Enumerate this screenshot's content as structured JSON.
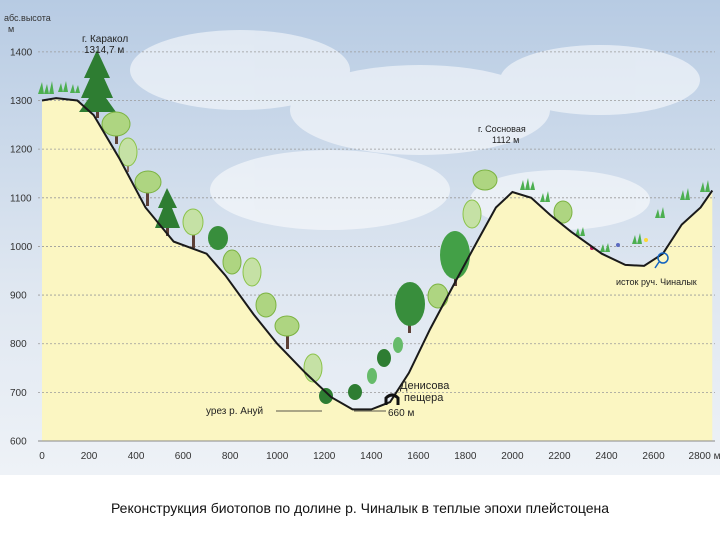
{
  "y_axis": {
    "label_line1": "абс.высота",
    "label_line2": "м",
    "ticks": [
      "1400",
      "1300",
      "1200",
      "1100",
      "1000",
      "900",
      "800",
      "700",
      "600"
    ]
  },
  "x_axis": {
    "ticks": [
      "0",
      "200",
      "400",
      "600",
      "800",
      "1000",
      "1200",
      "1400",
      "1600",
      "1800",
      "2000",
      "2200",
      "2400",
      "2600",
      "2800 м"
    ]
  },
  "annotations": {
    "karakol_name": "г. Каракол",
    "karakol_height": "1314,7 м",
    "sosnovaya_name": "г. Сосновая",
    "sosnovaya_height": "1112 м",
    "anui_level": "урез р. Ануй",
    "river_height": "660 м",
    "cave_line1": "Денисова",
    "cave_line2": "пещера",
    "source_label": "исток руч. Чиналык"
  },
  "profile": [
    [
      0,
      1300
    ],
    [
      60,
      1305
    ],
    [
      150,
      1300
    ],
    [
      220,
      1270
    ],
    [
      330,
      1180
    ],
    [
      440,
      1080
    ],
    [
      560,
      1010
    ],
    [
      700,
      985
    ],
    [
      780,
      940
    ],
    [
      900,
      860
    ],
    [
      1000,
      800
    ],
    [
      1120,
      740
    ],
    [
      1230,
      690
    ],
    [
      1320,
      665
    ],
    [
      1400,
      665
    ],
    [
      1480,
      680
    ],
    [
      1560,
      740
    ],
    [
      1650,
      830
    ],
    [
      1760,
      930
    ],
    [
      1850,
      1010
    ],
    [
      1930,
      1080
    ],
    [
      2000,
      1112
    ],
    [
      2080,
      1100
    ],
    [
      2160,
      1065
    ],
    [
      2250,
      1030
    ],
    [
      2380,
      985
    ],
    [
      2480,
      962
    ],
    [
      2560,
      960
    ],
    [
      2640,
      985
    ],
    [
      2720,
      1045
    ],
    [
      2800,
      1080
    ],
    [
      2850,
      1115
    ]
  ],
  "caption": "Реконструкция биотопов по долине р. Чиналык в теплые эпохи плейстоцена",
  "colors": {
    "sky": "#c9d8ea",
    "ground": "#fbf6c2",
    "profile_line": "#1a1a1a",
    "dark_green": "#2e7d32",
    "light_green": "#8bc34a",
    "pale_green": "#aed581"
  }
}
